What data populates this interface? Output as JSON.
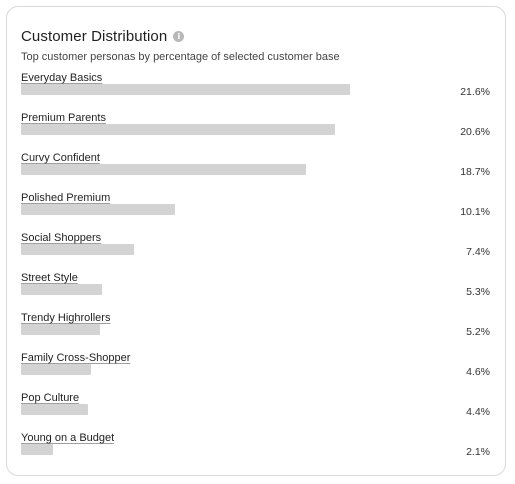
{
  "card": {
    "title": "Customer Distribution",
    "info_icon": "info-icon",
    "subtitle": "Top customer personas by percentage of selected customer base"
  },
  "colors": {
    "bar": "#d3d3d3",
    "border": "#d9d9d9",
    "icon": "#b8b8b8"
  },
  "personas": [
    {
      "label": "Everyday Basics",
      "value": "21.6%",
      "pct": 21.6
    },
    {
      "label": "Premium Parents",
      "value": "20.6%",
      "pct": 20.6
    },
    {
      "label": "Curvy Confident",
      "value": "18.7%",
      "pct": 18.7
    },
    {
      "label": "Polished Premium",
      "value": "10.1%",
      "pct": 10.1
    },
    {
      "label": "Social Shoppers",
      "value": "7.4%",
      "pct": 7.4
    },
    {
      "label": "Street Style",
      "value": "5.3%",
      "pct": 5.3
    },
    {
      "label": "Trendy Highrollers",
      "value": "5.2%",
      "pct": 5.2
    },
    {
      "label": "Family Cross-Shopper",
      "value": "4.6%",
      "pct": 4.6
    },
    {
      "label": "Pop Culture",
      "value": "4.4%",
      "pct": 4.4
    },
    {
      "label": "Young on a Budget",
      "value": "2.1%",
      "pct": 2.1
    }
  ]
}
